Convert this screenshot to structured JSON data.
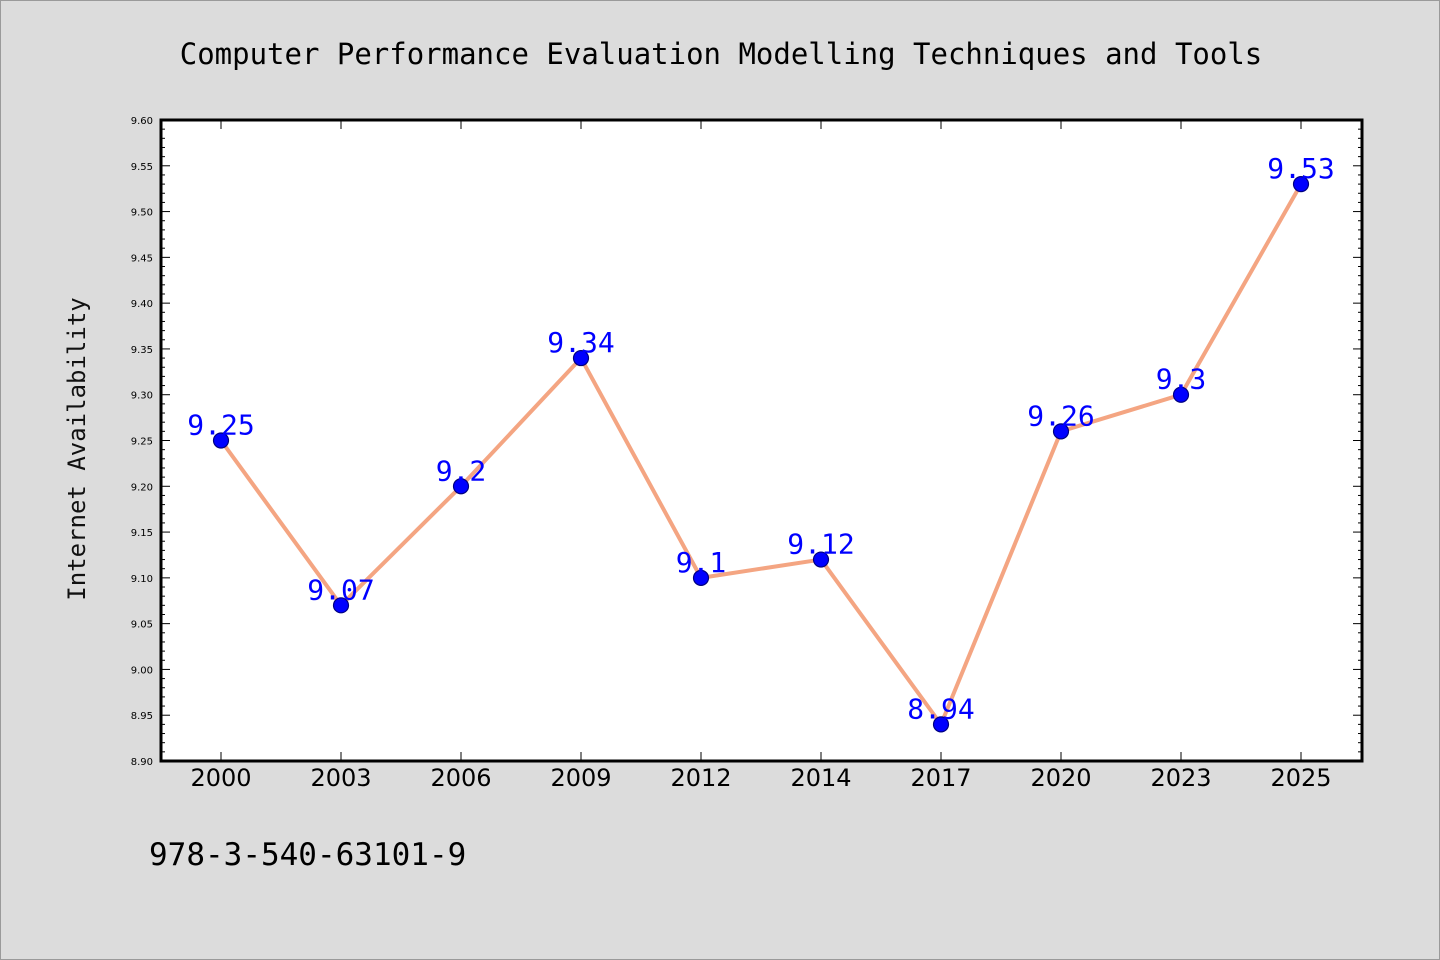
{
  "chart_data": {
    "type": "line",
    "title": "Computer Performance Evaluation Modelling Techniques and Tools",
    "xlabel": "",
    "ylabel": "Internet Availability",
    "categories": [
      "2000",
      "2003",
      "2006",
      "2009",
      "2012",
      "2014",
      "2017",
      "2020",
      "2023",
      "2025"
    ],
    "series": [
      {
        "values": [
          9.25,
          9.07,
          9.2,
          9.34,
          9.1,
          9.12,
          8.94,
          9.26,
          9.3,
          9.53
        ],
        "data_labels": [
          "9.25",
          "9.07",
          "9.2",
          "9.34",
          "9.1",
          "9.12",
          "8.94",
          "9.26",
          "9.3",
          "9.53"
        ]
      }
    ],
    "ylim": [
      8.9,
      9.6
    ],
    "yticks": [
      "8.90",
      "8.95",
      "9.00",
      "9.05",
      "9.10",
      "9.15",
      "9.20",
      "9.25",
      "9.30",
      "9.35",
      "9.40",
      "9.45",
      "9.50",
      "9.55",
      "9.60"
    ],
    "grid": false,
    "legend": "none",
    "colors": {
      "line": "#f4a582",
      "marker": "#0000ff",
      "marker_edge": "#000080",
      "label": "#0000ff",
      "background": "#dcdcdc",
      "plot_area": "#ffffff"
    }
  },
  "footer": {
    "isbn": "978-3-540-63101-9"
  }
}
